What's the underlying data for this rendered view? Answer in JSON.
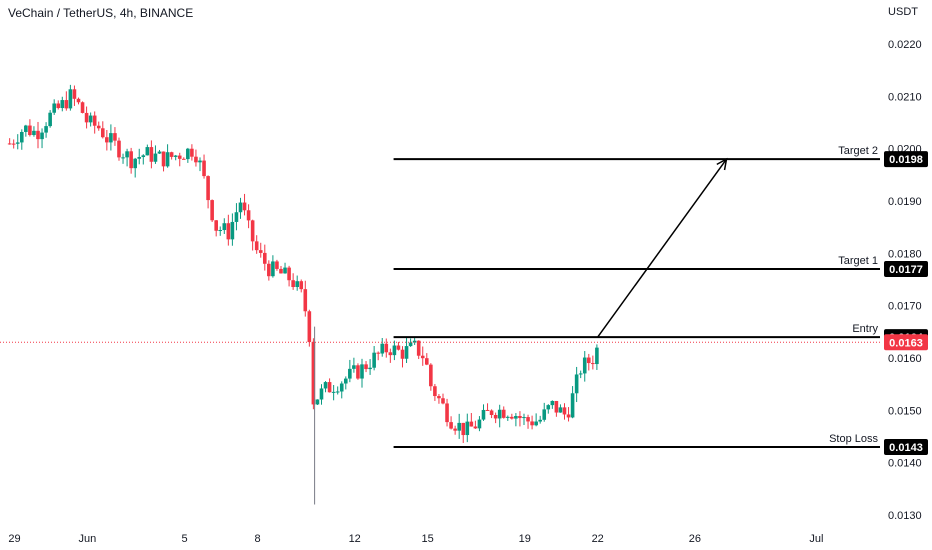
{
  "chart_data": {
    "type": "candlestick",
    "title": "VeChain / TetherUS, 4h, BINANCE",
    "unit": "USDT",
    "ylim": [
      0.0128,
      0.0226
    ],
    "y_ticks": [
      "0.0130",
      "0.0140",
      "0.0150",
      "0.0160",
      "0.0170",
      "0.0180",
      "0.0190",
      "0.0200",
      "0.0210",
      "0.0220"
    ],
    "x_ticks": [
      {
        "label": "29",
        "day": 0
      },
      {
        "label": "Jun",
        "day": 3
      },
      {
        "label": "5",
        "day": 7
      },
      {
        "label": "8",
        "day": 10
      },
      {
        "label": "12",
        "day": 14
      },
      {
        "label": "15",
        "day": 17
      },
      {
        "label": "19",
        "day": 21
      },
      {
        "label": "22",
        "day": 24
      },
      {
        "label": "26",
        "day": 28
      },
      {
        "label": "Jul",
        "day": 33
      }
    ],
    "levels": [
      {
        "name": "Target 2",
        "value": "0.0198",
        "start_day": 15.6
      },
      {
        "name": "Target 1",
        "value": "0.0177",
        "start_day": 15.6
      },
      {
        "name": "Entry",
        "value": "0.0164",
        "start_day": 15.6
      },
      {
        "name": "Stop Loss",
        "value": "0.0143",
        "start_day": 15.6
      }
    ],
    "last_price": "0.0163",
    "projection": {
      "from_day": 24.0,
      "from_value": 0.0164,
      "to_day": 29.3,
      "to_value": 0.0198
    },
    "close_anchors": [
      [
        -0.2,
        0.0201
      ],
      [
        0.4,
        0.0204
      ],
      [
        0.9,
        0.0203
      ],
      [
        1.4,
        0.0206
      ],
      [
        1.9,
        0.0208
      ],
      [
        2.3,
        0.021
      ],
      [
        2.7,
        0.0208
      ],
      [
        3.0,
        0.0205
      ],
      [
        3.5,
        0.0204
      ],
      [
        3.8,
        0.0202
      ],
      [
        4.3,
        0.02
      ],
      [
        4.8,
        0.0198
      ],
      [
        5.4,
        0.0199
      ],
      [
        6.2,
        0.0198
      ],
      [
        6.8,
        0.0199
      ],
      [
        7.4,
        0.02
      ],
      [
        7.7,
        0.0196
      ],
      [
        8.0,
        0.019
      ],
      [
        8.3,
        0.0185
      ],
      [
        8.8,
        0.0184
      ],
      [
        9.3,
        0.019
      ],
      [
        9.6,
        0.0185
      ],
      [
        10.0,
        0.018
      ],
      [
        10.5,
        0.0177
      ],
      [
        11.0,
        0.0176
      ],
      [
        11.4,
        0.0175
      ],
      [
        11.8,
        0.0172
      ],
      [
        12.1,
        0.0167
      ],
      [
        12.3,
        0.0152
      ],
      [
        12.8,
        0.0154
      ],
      [
        13.6,
        0.0156
      ],
      [
        14.3,
        0.0158
      ],
      [
        14.8,
        0.016
      ],
      [
        15.4,
        0.0162
      ],
      [
        15.9,
        0.0161
      ],
      [
        16.5,
        0.0162
      ],
      [
        16.9,
        0.016
      ],
      [
        17.1,
        0.0155
      ],
      [
        17.6,
        0.0151
      ],
      [
        18.0,
        0.0148
      ],
      [
        18.6,
        0.0146
      ],
      [
        19.2,
        0.0148
      ],
      [
        19.6,
        0.015
      ],
      [
        20.4,
        0.015
      ],
      [
        21.0,
        0.0148
      ],
      [
        21.6,
        0.0148
      ],
      [
        22.1,
        0.0151
      ],
      [
        22.7,
        0.0149
      ],
      [
        23.0,
        0.0153
      ],
      [
        23.3,
        0.0158
      ],
      [
        23.8,
        0.016
      ],
      [
        24.1,
        0.0163
      ]
    ],
    "wicks": [
      {
        "day": 12.35,
        "low": 0.0132,
        "high": 0.0166
      }
    ],
    "grid": false
  }
}
